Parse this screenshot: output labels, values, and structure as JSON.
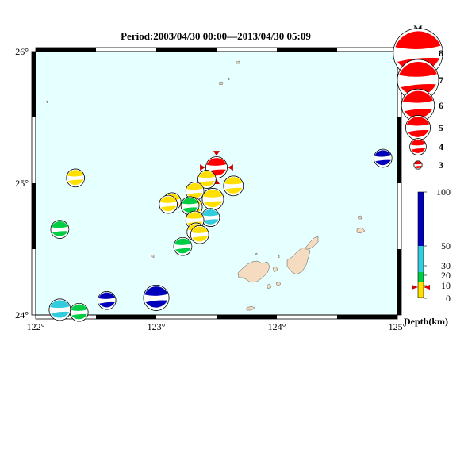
{
  "map": {
    "title": "Period:2003/04/30 00:00––2013/04/30 05:09",
    "lon_range": [
      122,
      125
    ],
    "lat_range": [
      24,
      26
    ],
    "lon_ticks": [
      {
        "value": 122,
        "label": "122°"
      },
      {
        "value": 123,
        "label": "123°"
      },
      {
        "value": 124,
        "label": "124°"
      },
      {
        "value": 125,
        "label": "125°"
      }
    ],
    "lat_ticks": [
      {
        "value": 24,
        "label": "24°"
      },
      {
        "value": 25,
        "label": "25°"
      },
      {
        "value": 26,
        "label": "26°"
      }
    ],
    "sea_color": "#e6ffff",
    "land_color": "#f5dcc0"
  },
  "legend": {
    "magnitude_title": "M",
    "magnitudes": [
      "8",
      "7",
      "6",
      "5",
      "4",
      "3"
    ],
    "depth_label": "Depth(km)",
    "depth_ticks": [
      "100",
      "50",
      "30",
      "20",
      "10",
      "0"
    ],
    "depth_colors": {
      "shallow": "#ffe000",
      "mid": "#00cc44",
      "deep": "#33ccdd",
      "deeper": "#0000bb",
      "latest": "#ff0000"
    }
  },
  "events": [
    {
      "lon": 123.5,
      "lat": 25.12,
      "mag": 4.6,
      "color": "#ff0000",
      "latest": true
    },
    {
      "lon": 122.33,
      "lat": 25.04,
      "mag": 4.2,
      "color": "#ffe000"
    },
    {
      "lon": 123.42,
      "lat": 25.03,
      "mag": 4.2,
      "color": "#ffe000"
    },
    {
      "lon": 123.64,
      "lat": 24.98,
      "mag": 4.4,
      "color": "#ffe000"
    },
    {
      "lon": 123.32,
      "lat": 24.94,
      "mag": 4.2,
      "color": "#ffe000"
    },
    {
      "lon": 123.13,
      "lat": 24.86,
      "mag": 4.2,
      "color": "#ffe000"
    },
    {
      "lon": 123.1,
      "lat": 24.84,
      "mag": 4.2,
      "color": "#ffe000"
    },
    {
      "lon": 123.47,
      "lat": 24.88,
      "mag": 4.6,
      "color": "#ffe000"
    },
    {
      "lon": 123.3,
      "lat": 24.82,
      "mag": 4.4,
      "color": "#ffe000"
    },
    {
      "lon": 123.28,
      "lat": 24.83,
      "mag": 4.2,
      "color": "#00cc44"
    },
    {
      "lon": 123.45,
      "lat": 24.74,
      "mag": 4.2,
      "color": "#33ccdd"
    },
    {
      "lon": 123.32,
      "lat": 24.72,
      "mag": 4.2,
      "color": "#ffe000"
    },
    {
      "lon": 123.33,
      "lat": 24.63,
      "mag": 4.2,
      "color": "#ffe000"
    },
    {
      "lon": 123.36,
      "lat": 24.61,
      "mag": 4.2,
      "color": "#ffe000"
    },
    {
      "lon": 122.2,
      "lat": 24.65,
      "mag": 4.2,
      "color": "#00cc44"
    },
    {
      "lon": 123.22,
      "lat": 24.52,
      "mag": 4.2,
      "color": "#00cc44"
    },
    {
      "lon": 122.59,
      "lat": 24.11,
      "mag": 4.2,
      "color": "#0000bb"
    },
    {
      "lon": 123.0,
      "lat": 24.13,
      "mag": 5.1,
      "color": "#0000bb"
    },
    {
      "lon": 122.2,
      "lat": 24.04,
      "mag": 4.6,
      "color": "#33ccdd"
    },
    {
      "lon": 122.36,
      "lat": 24.02,
      "mag": 4.2,
      "color": "#00cc44"
    },
    {
      "lon": 124.88,
      "lat": 25.19,
      "mag": 4.2,
      "color": "#0000bb"
    }
  ]
}
